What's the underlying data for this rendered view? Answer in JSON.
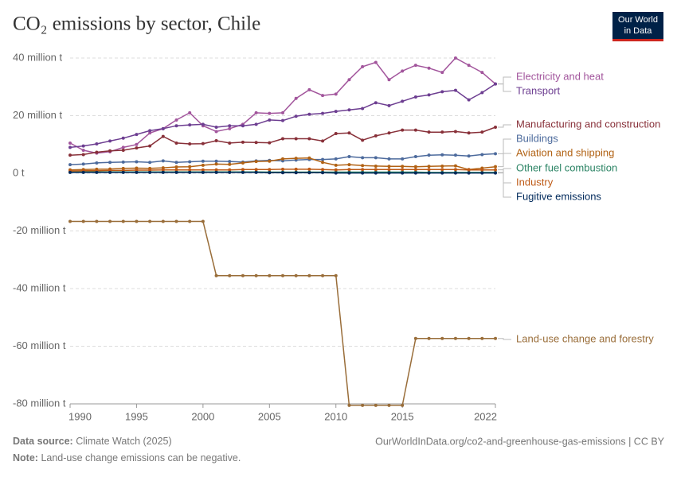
{
  "chart_data": {
    "type": "line",
    "title": "CO₂ emissions by sector, Chile",
    "logo": [
      "Our World",
      "in Data"
    ],
    "source_label": "Data source:",
    "source": "Climate Watch (2025)",
    "url": "OurWorldInData.org/co2-and-greenhouse-gas-emissions | CC BY",
    "note_label": "Note:",
    "note": "Land-use change emissions can be negative.",
    "x": [
      1990,
      1991,
      1992,
      1993,
      1994,
      1995,
      1996,
      1997,
      1998,
      1999,
      2000,
      2001,
      2002,
      2003,
      2004,
      2005,
      2006,
      2007,
      2008,
      2009,
      2010,
      2011,
      2012,
      2013,
      2014,
      2015,
      2016,
      2017,
      2018,
      2019,
      2020,
      2021,
      2022
    ],
    "xlim": [
      1990,
      2022
    ],
    "xticks": [
      1990,
      1995,
      2000,
      2005,
      2010,
      2015,
      2022
    ],
    "ylim": [
      -80,
      40
    ],
    "yticks": [
      {
        "value": 40,
        "label": "40 million t"
      },
      {
        "value": 20,
        "label": "20 million t"
      },
      {
        "value": 0,
        "label": "0 t"
      },
      {
        "value": -20,
        "label": "-20 million t"
      },
      {
        "value": -40,
        "label": "-40 million t"
      },
      {
        "value": -60,
        "label": "-60 million t"
      },
      {
        "value": -80,
        "label": "-80 million t"
      }
    ],
    "grid": true,
    "series": [
      {
        "name": "Electricity and heat",
        "color": "#a2559c",
        "values": [
          10.5,
          8,
          7,
          7.5,
          9,
          10,
          14,
          15.5,
          18.5,
          21,
          16.5,
          14.5,
          15.5,
          17,
          21,
          20.8,
          21,
          26,
          29,
          27,
          27.5,
          32.5,
          37,
          38.5,
          32.5,
          35.5,
          37.5,
          36.5,
          35,
          40,
          37.5,
          35,
          31
        ]
      },
      {
        "name": "Transport",
        "color": "#6d3e91",
        "values": [
          9,
          9.5,
          10.2,
          11.2,
          12.2,
          13.5,
          14.8,
          15.5,
          16.5,
          16.8,
          17,
          16,
          16.5,
          16.5,
          17,
          18.5,
          18.3,
          19.8,
          20.5,
          20.8,
          21.5,
          22,
          22.5,
          24.5,
          23.5,
          25,
          26.5,
          27.2,
          28.3,
          28.8,
          25.5,
          28,
          31
        ]
      },
      {
        "name": "Manufacturing and construction",
        "color": "#883039",
        "values": [
          6.3,
          6.5,
          7.3,
          7.8,
          8,
          8.8,
          9.5,
          12.8,
          10.5,
          10.2,
          10.3,
          11.3,
          10.5,
          10.8,
          10.7,
          10.6,
          12,
          12,
          12,
          11.2,
          13.8,
          14,
          11.5,
          13,
          14,
          15,
          15,
          14.3,
          14.3,
          14.5,
          14,
          14.3,
          16
        ]
      },
      {
        "name": "Buildings",
        "color": "#4c6a9c",
        "values": [
          3,
          3.2,
          3.6,
          3.8,
          3.9,
          4,
          3.8,
          4.3,
          3.8,
          4,
          4.2,
          4.2,
          4.1,
          3.9,
          4.3,
          4.5,
          4.3,
          4.6,
          4.8,
          4.8,
          5,
          5.8,
          5.4,
          5.4,
          5,
          5,
          5.8,
          6.3,
          6.4,
          6.3,
          6,
          6.5,
          6.8
        ]
      },
      {
        "name": "Aviation and shipping",
        "color": "#b16214",
        "values": [
          1.2,
          1.3,
          1.4,
          1.5,
          1.7,
          1.8,
          1.7,
          1.9,
          2.2,
          2.3,
          2.8,
          3.2,
          3.1,
          3.6,
          4.1,
          4.2,
          5,
          5.2,
          5.3,
          3.8,
          2.8,
          3,
          2.7,
          2.5,
          2.4,
          2.4,
          2.3,
          2.4,
          2.5,
          2.6,
          1.3,
          1.8,
          2.3
        ]
      },
      {
        "name": "Other fuel combustion",
        "color": "#2c8465",
        "values": [
          0.5,
          0.5,
          0.5,
          0.5,
          0.5,
          0.5,
          0.5,
          0.5,
          0.5,
          0.5,
          0.5,
          0.5,
          0.5,
          0.5,
          0.5,
          0.4,
          0.4,
          0.4,
          0.4,
          0.4,
          0.4,
          0.4,
          0.4,
          0.4,
          0.4,
          0.4,
          0.4,
          0.3,
          0.3,
          0.3,
          0.3,
          0.3,
          0.3
        ]
      },
      {
        "name": "Industry",
        "color": "#be5915",
        "values": [
          0.8,
          0.9,
          0.9,
          1,
          1,
          1.1,
          1.1,
          1.2,
          1.2,
          1.2,
          1.2,
          1.2,
          1.2,
          1.3,
          1.3,
          1.3,
          1.4,
          1.4,
          1.4,
          1.3,
          1.2,
          1.3,
          1.3,
          1.3,
          1.3,
          1.3,
          1.3,
          1.3,
          1.3,
          1.3,
          1.2,
          1.2,
          1.2
        ]
      },
      {
        "name": "Fugitive emissions",
        "color": "#00295b",
        "values": [
          0.3,
          0.3,
          0.3,
          0.3,
          0.3,
          0.3,
          0.3,
          0.3,
          0.3,
          0.3,
          0.3,
          0.3,
          0.3,
          0.3,
          0.3,
          0.2,
          0.2,
          0.2,
          0.2,
          0.2,
          0.1,
          0.1,
          0.1,
          0.1,
          0.1,
          0.1,
          0.1,
          0.1,
          0.1,
          0.1,
          0.1,
          0.1,
          0.1
        ]
      },
      {
        "name": "Land-use change and forestry",
        "color": "#996d39",
        "values": [
          -16.7,
          -16.7,
          -16.7,
          -16.7,
          -16.7,
          -16.7,
          -16.7,
          -16.7,
          -16.7,
          -16.7,
          -16.7,
          -35.5,
          -35.5,
          -35.5,
          -35.5,
          -35.5,
          -35.5,
          -35.5,
          -35.5,
          -35.5,
          -35.5,
          -80.5,
          -80.5,
          -80.5,
          -80.5,
          -80.5,
          -57.3,
          -57.3,
          -57.3,
          -57.3,
          -57.3,
          -57.3,
          -57.3
        ]
      }
    ]
  }
}
